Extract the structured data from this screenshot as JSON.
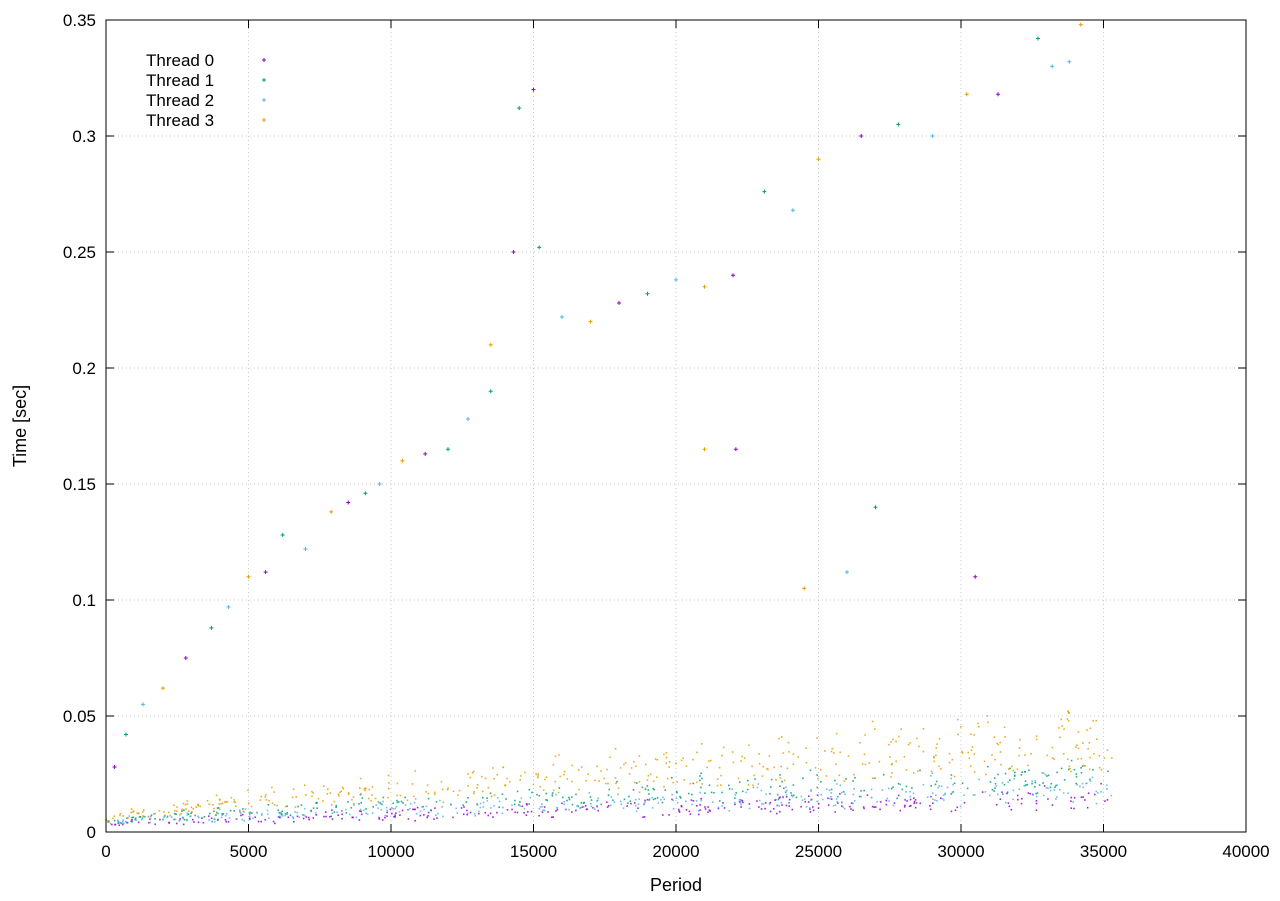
{
  "chart_data": {
    "type": "scatter",
    "xlabel": "Period",
    "ylabel": "Time [sec]",
    "xlim": [
      0,
      40000
    ],
    "ylim": [
      0,
      0.35
    ],
    "xticks": [
      "0",
      "5000",
      "10000",
      "15000",
      "20000",
      "25000",
      "30000",
      "35000",
      "40000"
    ],
    "yticks": [
      "0",
      "0.05",
      "0.1",
      "0.15",
      "0.2",
      "0.25",
      "0.3",
      "0.35"
    ],
    "grid": true,
    "legend_position": "top-left",
    "series": [
      {
        "name": "Thread 0",
        "color": "#9400d3",
        "base_at_0": 0.003,
        "base_at_35000": 0.013,
        "cloud_points": 300
      },
      {
        "name": "Thread 1",
        "color": "#009e73",
        "base_at_0": 0.004,
        "base_at_35000": 0.022,
        "cloud_points": 300
      },
      {
        "name": "Thread 2",
        "color": "#56b4e9",
        "base_at_0": 0.004,
        "base_at_35000": 0.017,
        "cloud_points": 350
      },
      {
        "name": "Thread 3",
        "color": "#e69f00",
        "base_at_0": 0.005,
        "base_at_35000": 0.035,
        "cloud_points": 450
      }
    ],
    "data_end_period": 35300,
    "sawtooth_cycle": 1000,
    "outliers": [
      [
        300,
        0.028
      ],
      [
        700,
        0.042
      ],
      [
        1300,
        0.055
      ],
      [
        2000,
        0.062
      ],
      [
        2800,
        0.075
      ],
      [
        3700,
        0.088
      ],
      [
        4300,
        0.097
      ],
      [
        5000,
        0.11
      ],
      [
        5600,
        0.112
      ],
      [
        6200,
        0.128
      ],
      [
        7000,
        0.122
      ],
      [
        7900,
        0.138
      ],
      [
        8500,
        0.142
      ],
      [
        9100,
        0.146
      ],
      [
        9600,
        0.15
      ],
      [
        10400,
        0.16
      ],
      [
        11200,
        0.163
      ],
      [
        12000,
        0.165
      ],
      [
        12700,
        0.178
      ],
      [
        13500,
        0.21
      ],
      [
        14300,
        0.25
      ],
      [
        15200,
        0.252
      ],
      [
        16000,
        0.222
      ],
      [
        17000,
        0.22
      ],
      [
        18000,
        0.228
      ],
      [
        19000,
        0.232
      ],
      [
        20000,
        0.238
      ],
      [
        21000,
        0.235
      ],
      [
        22000,
        0.24
      ],
      [
        23100,
        0.276
      ],
      [
        24100,
        0.268
      ],
      [
        25000,
        0.29
      ],
      [
        26500,
        0.3
      ],
      [
        27800,
        0.305
      ],
      [
        29000,
        0.3
      ],
      [
        30200,
        0.318
      ],
      [
        31300,
        0.318
      ],
      [
        32700,
        0.342
      ],
      [
        33800,
        0.332
      ],
      [
        34200,
        0.348
      ],
      [
        15000,
        0.32
      ],
      [
        14500,
        0.312
      ],
      [
        33200,
        0.33
      ],
      [
        21000,
        0.165
      ],
      [
        22100,
        0.165
      ],
      [
        27000,
        0.14
      ],
      [
        26000,
        0.112
      ],
      [
        24500,
        0.105
      ],
      [
        30500,
        0.11
      ],
      [
        13500,
        0.19
      ]
    ]
  }
}
